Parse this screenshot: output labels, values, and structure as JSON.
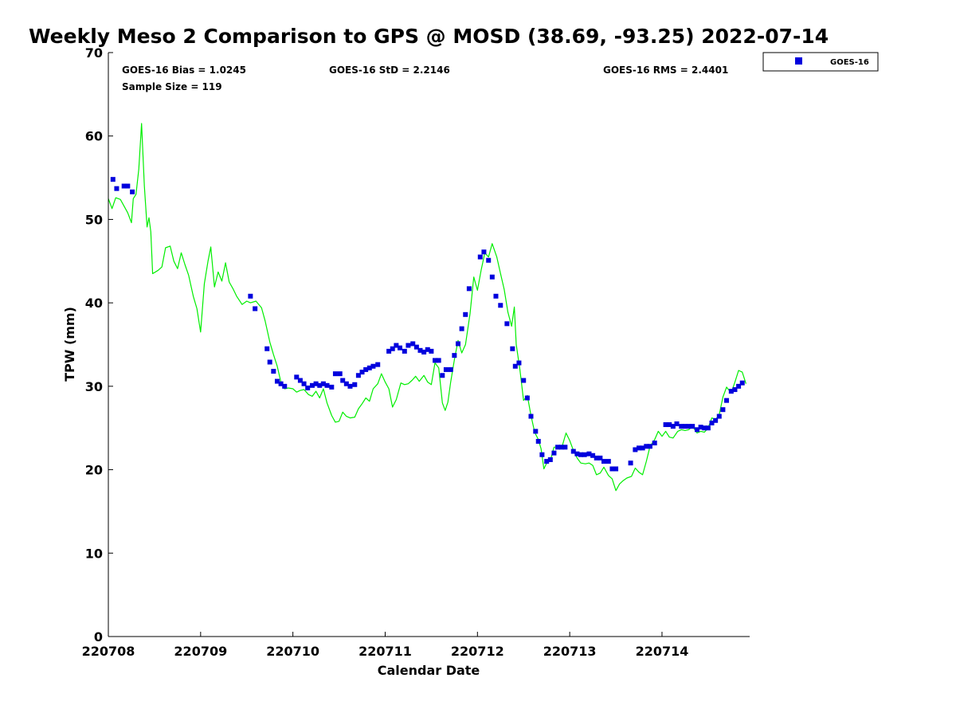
{
  "chart_data": {
    "type": "scatter",
    "title": "Weekly Meso 2 Comparison to GPS @ MOSD (38.69, -93.25) 2022-07-14",
    "xlabel": "Calendar Date",
    "ylabel": "TPW (mm)",
    "x_unit": "days",
    "xlim": [
      0,
      6.95
    ],
    "ylim": [
      0,
      70
    ],
    "yticks": [
      0,
      10,
      20,
      30,
      40,
      50,
      60,
      70
    ],
    "xticks": [
      {
        "value": 0,
        "label": "220708"
      },
      {
        "value": 1,
        "label": "220709"
      },
      {
        "value": 2,
        "label": "220710"
      },
      {
        "value": 3,
        "label": "220711"
      },
      {
        "value": 4,
        "label": "220712"
      },
      {
        "value": 5,
        "label": "220713"
      },
      {
        "value": 6,
        "label": "220714"
      }
    ],
    "grid": false,
    "legend": {
      "placement": "outside-top-right",
      "entries": [
        {
          "name": "GOES-16",
          "color": "#0000dd",
          "marker": "square"
        }
      ]
    },
    "stats": {
      "bias": "GOES-16 Bias = 1.0245",
      "std": "GOES-16 StD = 2.2146",
      "rms": "GOES-16 RMS = 2.4401",
      "sample": "Sample Size = 119"
    },
    "series": [
      {
        "name": "GOES-16",
        "style": "markers",
        "color": "#0000dd",
        "points": [
          [
            0.05,
            54.8
          ],
          [
            0.09,
            53.7
          ],
          [
            0.17,
            54.0
          ],
          [
            0.21,
            54.0
          ],
          [
            0.26,
            53.3
          ],
          [
            1.54,
            40.8
          ],
          [
            1.59,
            39.3
          ],
          [
            1.72,
            34.5
          ],
          [
            1.75,
            32.9
          ],
          [
            1.79,
            31.8
          ],
          [
            1.83,
            30.6
          ],
          [
            1.87,
            30.3
          ],
          [
            1.91,
            30.0
          ],
          [
            2.04,
            31.1
          ],
          [
            2.08,
            30.7
          ],
          [
            2.12,
            30.3
          ],
          [
            2.16,
            29.8
          ],
          [
            2.21,
            30.1
          ],
          [
            2.25,
            30.3
          ],
          [
            2.29,
            30.1
          ],
          [
            2.33,
            30.3
          ],
          [
            2.37,
            30.1
          ],
          [
            2.42,
            29.9
          ],
          [
            2.46,
            31.5
          ],
          [
            2.51,
            31.5
          ],
          [
            2.54,
            30.7
          ],
          [
            2.58,
            30.3
          ],
          [
            2.62,
            30.0
          ],
          [
            2.67,
            30.2
          ],
          [
            2.71,
            31.3
          ],
          [
            2.75,
            31.7
          ],
          [
            2.79,
            32.0
          ],
          [
            2.83,
            32.2
          ],
          [
            2.87,
            32.4
          ],
          [
            2.92,
            32.6
          ],
          [
            3.04,
            34.2
          ],
          [
            3.08,
            34.5
          ],
          [
            3.12,
            34.9
          ],
          [
            3.16,
            34.6
          ],
          [
            3.21,
            34.2
          ],
          [
            3.25,
            34.9
          ],
          [
            3.3,
            35.1
          ],
          [
            3.34,
            34.7
          ],
          [
            3.38,
            34.3
          ],
          [
            3.42,
            34.1
          ],
          [
            3.46,
            34.4
          ],
          [
            3.5,
            34.2
          ],
          [
            3.54,
            33.1
          ],
          [
            3.58,
            33.1
          ],
          [
            3.62,
            31.3
          ],
          [
            3.66,
            32.0
          ],
          [
            3.71,
            32.0
          ],
          [
            3.75,
            33.7
          ],
          [
            3.79,
            35.1
          ],
          [
            3.83,
            36.9
          ],
          [
            3.87,
            38.6
          ],
          [
            3.91,
            41.7
          ],
          [
            4.03,
            45.5
          ],
          [
            4.07,
            46.1
          ],
          [
            4.12,
            45.1
          ],
          [
            4.16,
            43.1
          ],
          [
            4.2,
            40.8
          ],
          [
            4.25,
            39.7
          ],
          [
            4.32,
            37.5
          ],
          [
            4.38,
            34.5
          ],
          [
            4.41,
            32.4
          ],
          [
            4.45,
            32.8
          ],
          [
            4.5,
            30.7
          ],
          [
            4.54,
            28.6
          ],
          [
            4.58,
            26.4
          ],
          [
            4.63,
            24.6
          ],
          [
            4.66,
            23.4
          ],
          [
            4.7,
            21.8
          ],
          [
            4.75,
            21.0
          ],
          [
            4.79,
            21.2
          ],
          [
            4.83,
            22.0
          ],
          [
            4.87,
            22.7
          ],
          [
            4.91,
            22.7
          ],
          [
            4.95,
            22.7
          ],
          [
            5.04,
            22.2
          ],
          [
            5.08,
            21.9
          ],
          [
            5.12,
            21.8
          ],
          [
            5.16,
            21.8
          ],
          [
            5.21,
            21.9
          ],
          [
            5.25,
            21.7
          ],
          [
            5.29,
            21.4
          ],
          [
            5.33,
            21.4
          ],
          [
            5.37,
            21.0
          ],
          [
            5.42,
            21.0
          ],
          [
            5.46,
            20.1
          ],
          [
            5.5,
            20.1
          ],
          [
            5.66,
            20.8
          ],
          [
            5.71,
            22.4
          ],
          [
            5.75,
            22.6
          ],
          [
            5.79,
            22.6
          ],
          [
            5.83,
            22.8
          ],
          [
            5.87,
            22.8
          ],
          [
            5.92,
            23.2
          ],
          [
            6.04,
            25.4
          ],
          [
            6.08,
            25.4
          ],
          [
            6.12,
            25.2
          ],
          [
            6.16,
            25.5
          ],
          [
            6.21,
            25.2
          ],
          [
            6.25,
            25.2
          ],
          [
            6.29,
            25.2
          ],
          [
            6.33,
            25.2
          ],
          [
            6.38,
            24.8
          ],
          [
            6.42,
            25.1
          ],
          [
            6.46,
            25.0
          ],
          [
            6.5,
            25.0
          ],
          [
            6.54,
            25.6
          ],
          [
            6.58,
            25.9
          ],
          [
            6.62,
            26.4
          ],
          [
            6.66,
            27.2
          ],
          [
            6.7,
            28.3
          ],
          [
            6.75,
            29.4
          ],
          [
            6.79,
            29.6
          ],
          [
            6.83,
            30.0
          ],
          [
            6.87,
            30.4
          ]
        ]
      },
      {
        "name": "GPS",
        "style": "line",
        "color": "#00ee00",
        "points": [
          [
            0.0,
            52.5
          ],
          [
            0.04,
            51.3
          ],
          [
            0.08,
            52.6
          ],
          [
            0.13,
            52.4
          ],
          [
            0.17,
            51.6
          ],
          [
            0.21,
            50.8
          ],
          [
            0.25,
            49.6
          ],
          [
            0.27,
            52.5
          ],
          [
            0.3,
            53.0
          ],
          [
            0.33,
            56.0
          ],
          [
            0.36,
            61.5
          ],
          [
            0.39,
            54.0
          ],
          [
            0.42,
            49.1
          ],
          [
            0.44,
            50.2
          ],
          [
            0.46,
            48.5
          ],
          [
            0.48,
            43.5
          ],
          [
            0.54,
            43.9
          ],
          [
            0.58,
            44.3
          ],
          [
            0.62,
            46.6
          ],
          [
            0.67,
            46.8
          ],
          [
            0.71,
            45.0
          ],
          [
            0.75,
            44.1
          ],
          [
            0.79,
            46.0
          ],
          [
            0.83,
            44.6
          ],
          [
            0.87,
            43.3
          ],
          [
            0.92,
            40.8
          ],
          [
            0.96,
            39.3
          ],
          [
            1.0,
            36.5
          ],
          [
            1.04,
            42.3
          ],
          [
            1.08,
            45.0
          ],
          [
            1.11,
            46.7
          ],
          [
            1.15,
            41.9
          ],
          [
            1.19,
            43.7
          ],
          [
            1.23,
            42.6
          ],
          [
            1.27,
            44.8
          ],
          [
            1.31,
            42.5
          ],
          [
            1.35,
            41.7
          ],
          [
            1.39,
            40.8
          ],
          [
            1.45,
            39.8
          ],
          [
            1.5,
            40.2
          ],
          [
            1.54,
            40.0
          ],
          [
            1.6,
            40.2
          ],
          [
            1.66,
            39.4
          ],
          [
            1.7,
            37.8
          ],
          [
            1.75,
            35.3
          ],
          [
            1.79,
            33.8
          ],
          [
            1.83,
            32.4
          ],
          [
            1.87,
            30.5
          ],
          [
            1.91,
            29.7
          ],
          [
            1.95,
            29.8
          ],
          [
            2.0,
            29.7
          ],
          [
            2.04,
            29.3
          ],
          [
            2.08,
            29.5
          ],
          [
            2.12,
            29.6
          ],
          [
            2.17,
            29.0
          ],
          [
            2.21,
            28.8
          ],
          [
            2.25,
            29.4
          ],
          [
            2.29,
            28.6
          ],
          [
            2.33,
            29.7
          ],
          [
            2.37,
            28.0
          ],
          [
            2.42,
            26.5
          ],
          [
            2.46,
            25.7
          ],
          [
            2.5,
            25.8
          ],
          [
            2.54,
            26.9
          ],
          [
            2.58,
            26.4
          ],
          [
            2.62,
            26.2
          ],
          [
            2.67,
            26.3
          ],
          [
            2.71,
            27.3
          ],
          [
            2.75,
            27.9
          ],
          [
            2.79,
            28.6
          ],
          [
            2.83,
            28.2
          ],
          [
            2.87,
            29.7
          ],
          [
            2.92,
            30.3
          ],
          [
            2.96,
            31.5
          ],
          [
            3.0,
            30.5
          ],
          [
            3.04,
            29.7
          ],
          [
            3.08,
            27.5
          ],
          [
            3.12,
            28.4
          ],
          [
            3.17,
            30.4
          ],
          [
            3.21,
            30.2
          ],
          [
            3.25,
            30.3
          ],
          [
            3.29,
            30.7
          ],
          [
            3.33,
            31.2
          ],
          [
            3.37,
            30.6
          ],
          [
            3.42,
            31.3
          ],
          [
            3.46,
            30.5
          ],
          [
            3.5,
            30.2
          ],
          [
            3.54,
            32.8
          ],
          [
            3.58,
            32.2
          ],
          [
            3.62,
            28.0
          ],
          [
            3.65,
            27.1
          ],
          [
            3.68,
            28.1
          ],
          [
            3.71,
            30.5
          ],
          [
            3.75,
            33.2
          ],
          [
            3.79,
            35.5
          ],
          [
            3.83,
            34.0
          ],
          [
            3.87,
            35.0
          ],
          [
            3.92,
            38.7
          ],
          [
            3.96,
            43.1
          ],
          [
            4.0,
            41.5
          ],
          [
            4.04,
            43.9
          ],
          [
            4.08,
            46.0
          ],
          [
            4.12,
            45.5
          ],
          [
            4.16,
            47.1
          ],
          [
            4.21,
            45.5
          ],
          [
            4.25,
            43.5
          ],
          [
            4.29,
            41.6
          ],
          [
            4.33,
            38.9
          ],
          [
            4.37,
            37.2
          ],
          [
            4.4,
            39.5
          ],
          [
            4.42,
            35.0
          ],
          [
            4.46,
            32.0
          ],
          [
            4.5,
            28.3
          ],
          [
            4.54,
            28.9
          ],
          [
            4.58,
            26.5
          ],
          [
            4.62,
            24.5
          ],
          [
            4.66,
            23.6
          ],
          [
            4.69,
            22.5
          ],
          [
            4.72,
            20.1
          ],
          [
            4.75,
            20.8
          ],
          [
            4.79,
            21.1
          ],
          [
            4.83,
            22.7
          ],
          [
            4.87,
            22.7
          ],
          [
            4.92,
            22.9
          ],
          [
            4.96,
            24.4
          ],
          [
            5.0,
            23.5
          ],
          [
            5.04,
            22.3
          ],
          [
            5.08,
            21.4
          ],
          [
            5.12,
            20.8
          ],
          [
            5.17,
            20.7
          ],
          [
            5.21,
            20.8
          ],
          [
            5.25,
            20.5
          ],
          [
            5.29,
            19.4
          ],
          [
            5.33,
            19.6
          ],
          [
            5.37,
            20.3
          ],
          [
            5.42,
            19.3
          ],
          [
            5.46,
            18.9
          ],
          [
            5.5,
            17.5
          ],
          [
            5.54,
            18.3
          ],
          [
            5.58,
            18.7
          ],
          [
            5.62,
            19.0
          ],
          [
            5.67,
            19.2
          ],
          [
            5.71,
            20.2
          ],
          [
            5.75,
            19.7
          ],
          [
            5.79,
            19.4
          ],
          [
            5.83,
            21.0
          ],
          [
            5.87,
            22.8
          ],
          [
            5.92,
            23.6
          ],
          [
            5.96,
            24.6
          ],
          [
            6.0,
            24.0
          ],
          [
            6.04,
            24.6
          ],
          [
            6.08,
            23.9
          ],
          [
            6.12,
            23.8
          ],
          [
            6.17,
            24.6
          ],
          [
            6.21,
            24.8
          ],
          [
            6.25,
            24.7
          ],
          [
            6.29,
            24.8
          ],
          [
            6.33,
            25.2
          ],
          [
            6.38,
            24.4
          ],
          [
            6.42,
            24.6
          ],
          [
            6.46,
            24.5
          ],
          [
            6.5,
            25.0
          ],
          [
            6.54,
            26.2
          ],
          [
            6.58,
            26.0
          ],
          [
            6.62,
            26.6
          ],
          [
            6.66,
            28.7
          ],
          [
            6.7,
            29.9
          ],
          [
            6.75,
            29.2
          ],
          [
            6.79,
            30.5
          ],
          [
            6.83,
            31.9
          ],
          [
            6.87,
            31.7
          ],
          [
            6.91,
            30.3
          ]
        ]
      }
    ]
  }
}
